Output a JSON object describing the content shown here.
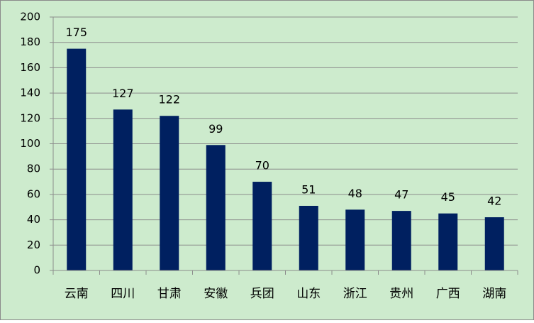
{
  "chart_data": {
    "type": "bar",
    "categories": [
      "云南",
      "四川",
      "甘肃",
      "安徽",
      "兵团",
      "山东",
      "浙江",
      "贵州",
      "广西",
      "湖南"
    ],
    "values": [
      175,
      127,
      122,
      99,
      70,
      51,
      48,
      47,
      45,
      42
    ],
    "color": "#002060",
    "ylim": [
      0,
      200
    ],
    "yticks": [
      0,
      20,
      40,
      60,
      80,
      100,
      120,
      140,
      160,
      180,
      200
    ],
    "grid": true
  }
}
